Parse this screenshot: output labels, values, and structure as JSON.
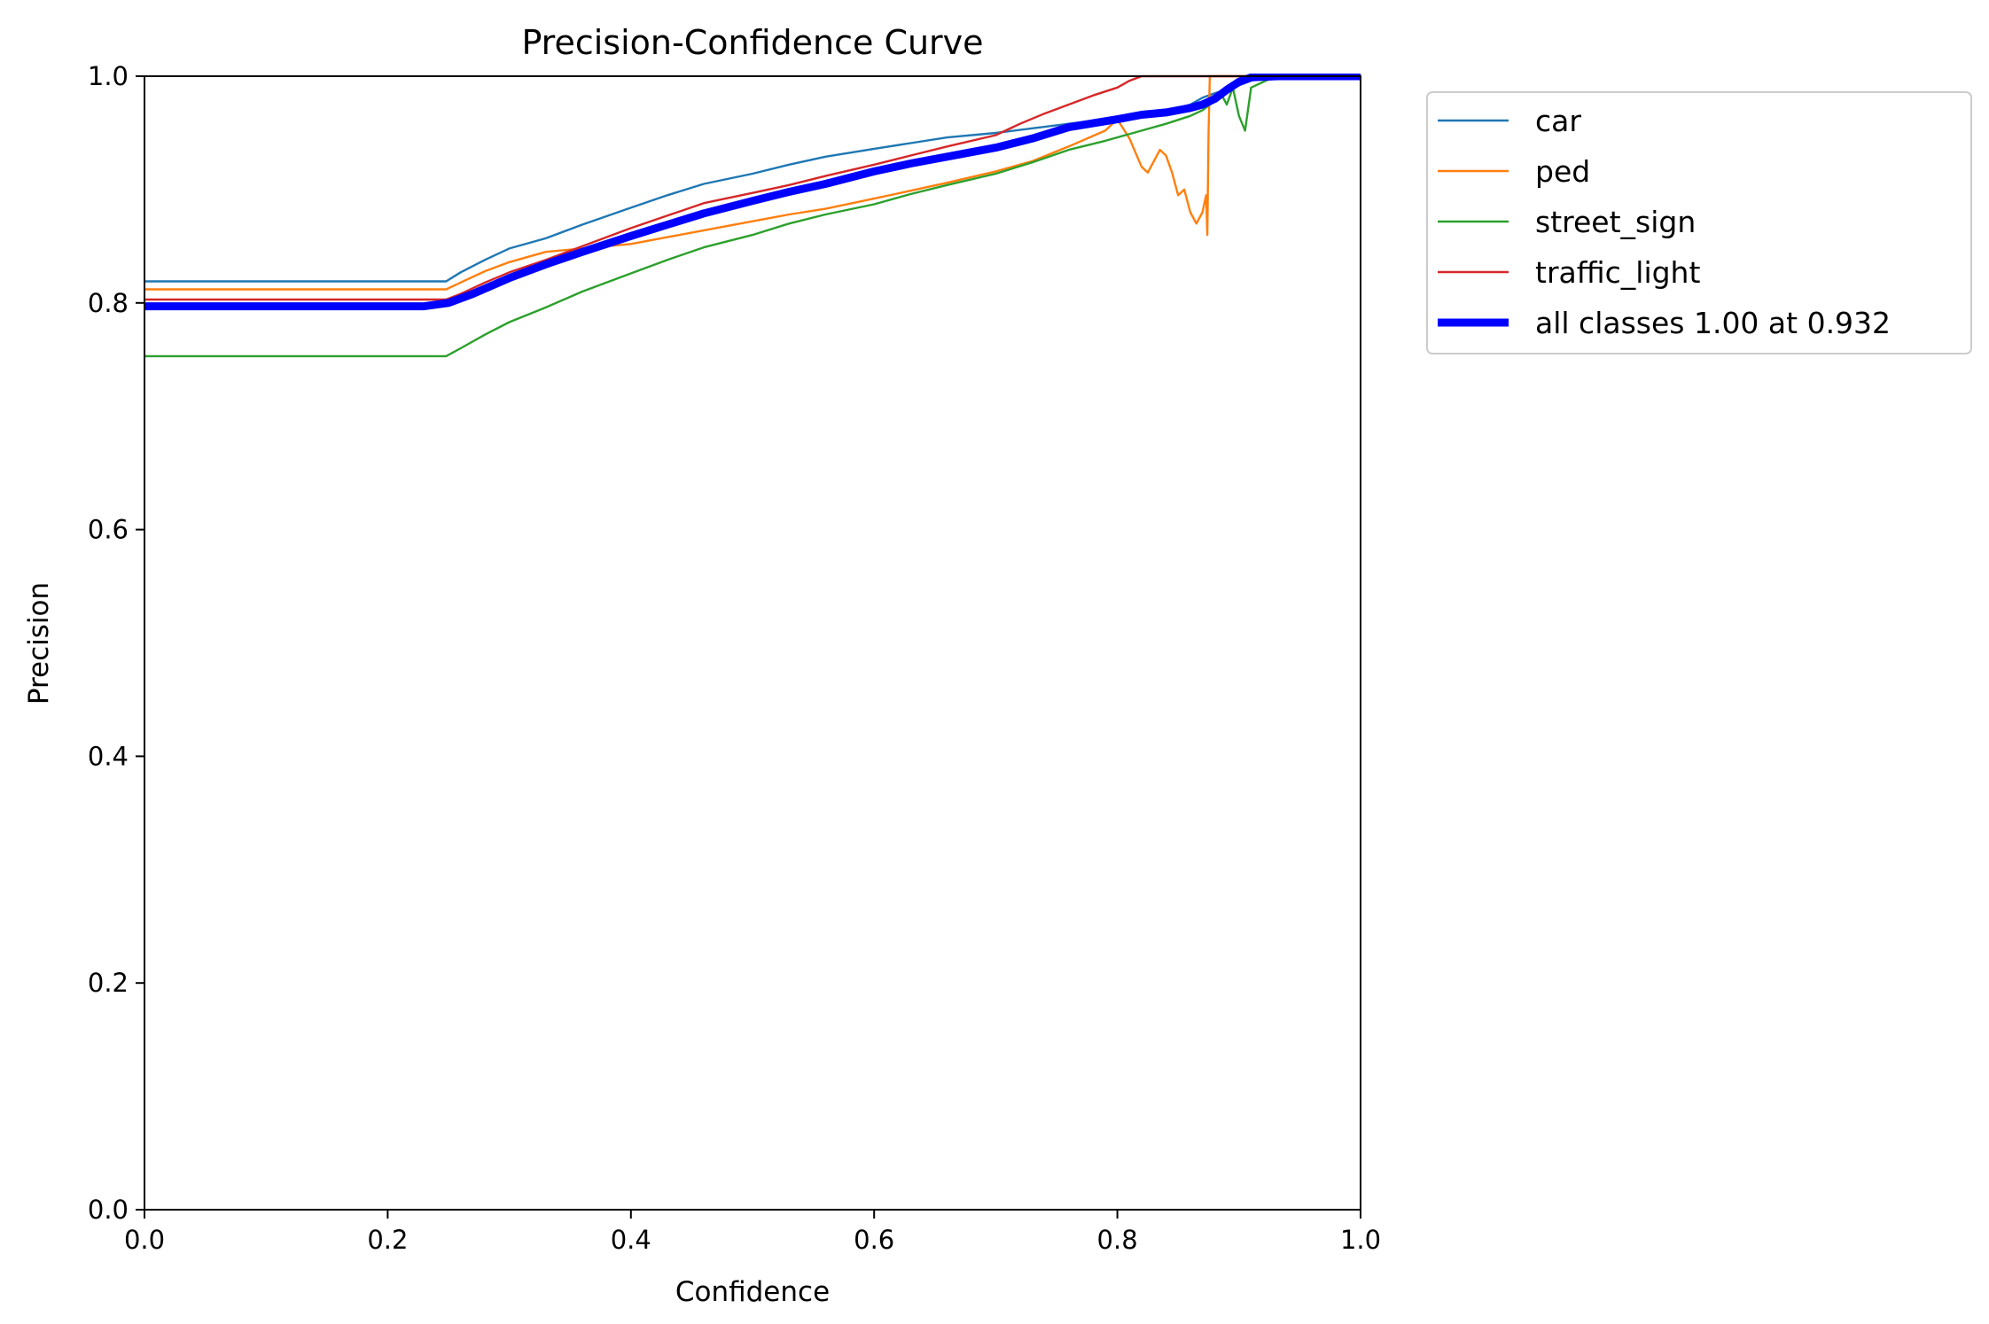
{
  "chart_data": {
    "type": "line",
    "title": "Precision-Confidence Curve",
    "xlabel": "Confidence",
    "ylabel": "Precision",
    "xlim": [
      0,
      1
    ],
    "ylim": [
      0,
      1
    ],
    "xticks": [
      "0.0",
      "0.2",
      "0.4",
      "0.6",
      "0.8",
      "1.0"
    ],
    "yticks": [
      "0.0",
      "0.2",
      "0.4",
      "0.6",
      "0.8",
      "1.0"
    ],
    "grid": false,
    "legend_position": "outside-top-right",
    "series": [
      {
        "name": "car",
        "color": "#1f77b4",
        "x": [
          0,
          0.248,
          0.26,
          0.28,
          0.3,
          0.33,
          0.36,
          0.4,
          0.43,
          0.46,
          0.5,
          0.53,
          0.56,
          0.6,
          0.63,
          0.66,
          0.7,
          0.73,
          0.76,
          0.79,
          0.81,
          0.83,
          0.85,
          0.86,
          0.87,
          0.88,
          0.89,
          0.9,
          0.91,
          0.92,
          0.95,
          1.0
        ],
        "y": [
          0.819,
          0.819,
          0.827,
          0.838,
          0.848,
          0.857,
          0.869,
          0.884,
          0.895,
          0.905,
          0.914,
          0.922,
          0.929,
          0.936,
          0.941,
          0.946,
          0.95,
          0.954,
          0.958,
          0.962,
          0.966,
          0.968,
          0.972,
          0.975,
          0.981,
          0.985,
          0.988,
          0.992,
          0.996,
          0.999,
          1.0,
          1.0
        ]
      },
      {
        "name": "ped",
        "color": "#ff7f0e",
        "x": [
          0,
          0.248,
          0.26,
          0.28,
          0.3,
          0.33,
          0.36,
          0.4,
          0.43,
          0.46,
          0.5,
          0.53,
          0.56,
          0.6,
          0.63,
          0.66,
          0.7,
          0.73,
          0.76,
          0.79,
          0.8,
          0.81,
          0.82,
          0.825,
          0.83,
          0.835,
          0.84,
          0.845,
          0.85,
          0.855,
          0.86,
          0.865,
          0.87,
          0.873,
          0.874,
          0.875,
          0.876,
          0.88,
          0.9,
          0.95,
          1.0
        ],
        "y": [
          0.812,
          0.812,
          0.818,
          0.828,
          0.836,
          0.845,
          0.848,
          0.852,
          0.858,
          0.864,
          0.872,
          0.878,
          0.883,
          0.892,
          0.899,
          0.906,
          0.916,
          0.925,
          0.938,
          0.952,
          0.962,
          0.945,
          0.92,
          0.915,
          0.925,
          0.935,
          0.93,
          0.915,
          0.895,
          0.9,
          0.88,
          0.87,
          0.88,
          0.895,
          0.86,
          0.95,
          1.0,
          1.0,
          1.0,
          1.0,
          1.0
        ]
      },
      {
        "name": "street_sign",
        "color": "#2ca02c",
        "x": [
          0,
          0.248,
          0.26,
          0.28,
          0.3,
          0.33,
          0.36,
          0.4,
          0.43,
          0.46,
          0.5,
          0.53,
          0.56,
          0.6,
          0.63,
          0.66,
          0.7,
          0.73,
          0.76,
          0.79,
          0.82,
          0.84,
          0.86,
          0.87,
          0.88,
          0.885,
          0.89,
          0.895,
          0.9,
          0.905,
          0.91,
          0.93,
          1.0
        ],
        "y": [
          0.753,
          0.753,
          0.76,
          0.772,
          0.783,
          0.796,
          0.81,
          0.826,
          0.838,
          0.849,
          0.86,
          0.87,
          0.878,
          0.887,
          0.896,
          0.904,
          0.914,
          0.924,
          0.935,
          0.943,
          0.952,
          0.958,
          0.965,
          0.97,
          0.978,
          0.985,
          0.975,
          0.99,
          0.965,
          0.952,
          0.99,
          1.0,
          1.0
        ]
      },
      {
        "name": "traffic_light",
        "color": "#d62728",
        "x": [
          0,
          0.248,
          0.26,
          0.28,
          0.3,
          0.33,
          0.36,
          0.4,
          0.43,
          0.46,
          0.5,
          0.53,
          0.56,
          0.6,
          0.63,
          0.66,
          0.7,
          0.72,
          0.74,
          0.76,
          0.78,
          0.8,
          0.81,
          0.82,
          0.95,
          1.0
        ],
        "y": [
          0.803,
          0.803,
          0.808,
          0.818,
          0.827,
          0.838,
          0.85,
          0.866,
          0.877,
          0.888,
          0.897,
          0.904,
          0.912,
          0.922,
          0.93,
          0.938,
          0.948,
          0.958,
          0.967,
          0.975,
          0.983,
          0.99,
          0.996,
          1.0,
          1.0,
          1.0
        ]
      },
      {
        "name": "all classes 1.00 at 0.932",
        "color": "#0000ff",
        "thick": true,
        "x": [
          0,
          0.23,
          0.25,
          0.27,
          0.3,
          0.33,
          0.36,
          0.4,
          0.43,
          0.46,
          0.5,
          0.53,
          0.56,
          0.6,
          0.63,
          0.66,
          0.7,
          0.73,
          0.76,
          0.8,
          0.82,
          0.84,
          0.86,
          0.87,
          0.88,
          0.89,
          0.9,
          0.91,
          0.932,
          0.95,
          1.0
        ],
        "y": [
          0.797,
          0.797,
          0.8,
          0.808,
          0.822,
          0.834,
          0.845,
          0.859,
          0.869,
          0.879,
          0.89,
          0.898,
          0.905,
          0.916,
          0.923,
          0.929,
          0.937,
          0.945,
          0.955,
          0.962,
          0.966,
          0.968,
          0.972,
          0.975,
          0.98,
          0.988,
          0.995,
          0.999,
          1.0,
          1.0,
          1.0
        ]
      }
    ]
  }
}
